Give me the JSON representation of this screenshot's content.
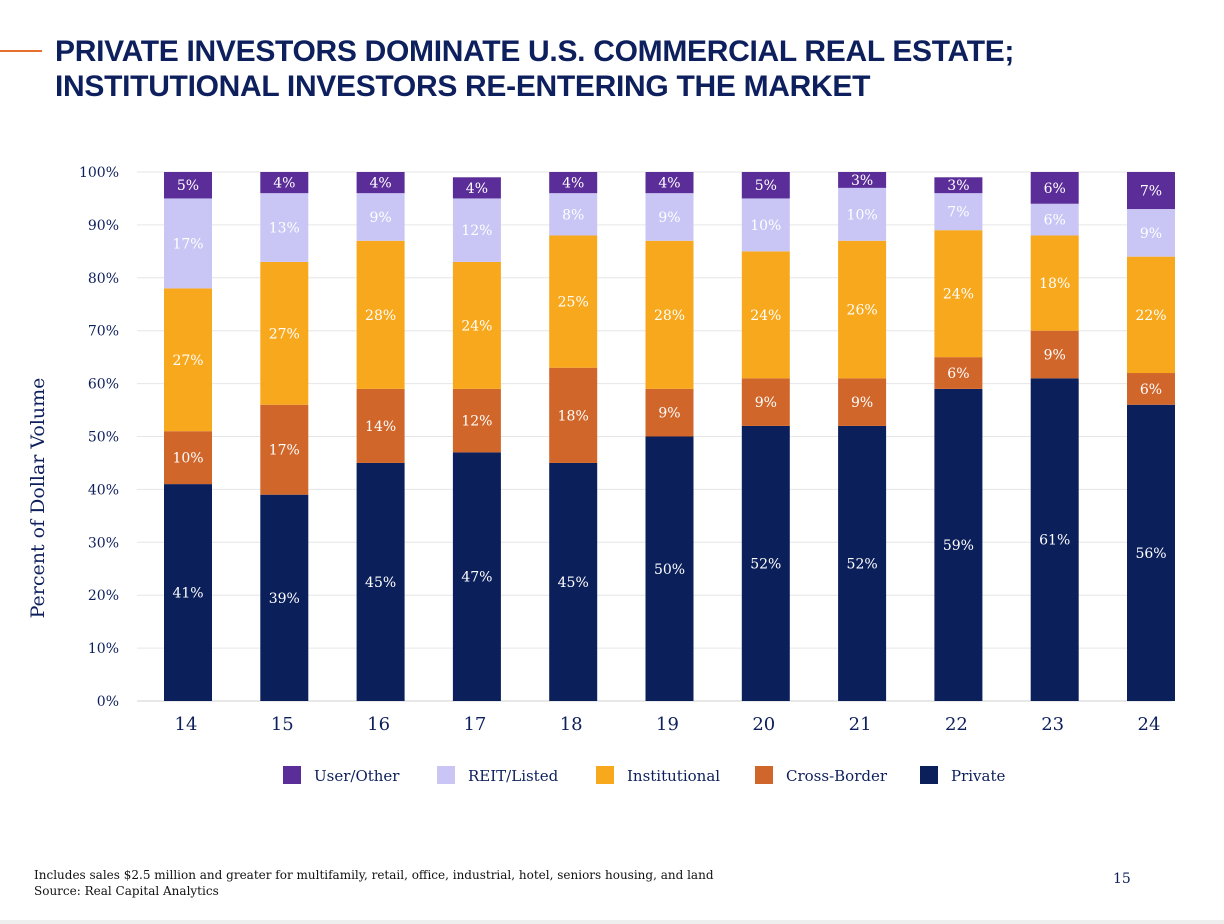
{
  "header": {
    "title_line1": "PRIVATE INVESTORS DOMINATE U.S. COMMERCIAL REAL ESTATE;",
    "title_line2": "INSTITUTIONAL INVESTORS RE-ENTERING THE MARKET"
  },
  "chart_data": {
    "type": "bar",
    "stacked": true,
    "title": "PRIVATE INVESTORS DOMINATE U.S. COMMERCIAL REAL ESTATE; INSTITUTIONAL INVESTORS RE-ENTERING THE MARKET",
    "xlabel": "",
    "ylabel": "Percent of Dollar Volume",
    "ylim": [
      0,
      100
    ],
    "y_ticks": [
      "0%",
      "10%",
      "20%",
      "30%",
      "40%",
      "50%",
      "60%",
      "70%",
      "80%",
      "90%",
      "100%"
    ],
    "grid": true,
    "legend_position": "bottom",
    "categories": [
      "14",
      "15",
      "16",
      "17",
      "18",
      "19",
      "20",
      "21",
      "22",
      "23",
      "24"
    ],
    "series": [
      {
        "name": "Private",
        "color": "#0b1f5b",
        "label_color": "#ffffff",
        "values": [
          41,
          39,
          45,
          47,
          45,
          50,
          52,
          52,
          59,
          61,
          56
        ],
        "labels": [
          "41%",
          "39%",
          "45%",
          "47%",
          "45%",
          "50%",
          "52%",
          "52%",
          "59%",
          "61%",
          "56%"
        ]
      },
      {
        "name": "Cross-Border",
        "color": "#d1662b",
        "label_color": "#ffffff",
        "values": [
          10,
          17,
          14,
          12,
          18,
          9,
          9,
          9,
          6,
          9,
          6
        ],
        "labels": [
          "10%",
          "17%",
          "14%",
          "12%",
          "18%",
          "9%",
          "9%",
          "9%",
          "6%",
          "9%",
          "6%"
        ]
      },
      {
        "name": "Institutional",
        "color": "#f8a81c",
        "label_color": "#ffffff",
        "values": [
          27,
          27,
          28,
          24,
          25,
          28,
          24,
          26,
          24,
          18,
          22
        ],
        "labels": [
          "27%",
          "27%",
          "28%",
          "24%",
          "25%",
          "28%",
          "24%",
          "26%",
          "24%",
          "18%",
          "22%"
        ]
      },
      {
        "name": "REIT/Listed",
        "color": "#c9c6f5",
        "label_color": "#ffffff",
        "values": [
          17,
          13,
          9,
          12,
          8,
          9,
          10,
          10,
          7,
          6,
          9
        ],
        "labels": [
          "17%",
          "13%",
          "9%",
          "12%",
          "8%",
          "9%",
          "10%",
          "10%",
          "7%",
          "6%",
          "9%"
        ]
      },
      {
        "name": "User/Other",
        "color": "#5b2d99",
        "label_color": "#ffffff",
        "values": [
          5,
          4,
          4,
          4,
          4,
          4,
          5,
          3,
          3,
          6,
          7
        ],
        "labels": [
          "5%",
          "4%",
          "4%",
          "4%",
          "4%",
          "4%",
          "5%",
          "3%",
          "3%",
          "6%",
          "7%"
        ]
      }
    ],
    "legend_order": [
      "User/Other",
      "REIT/Listed",
      "Institutional",
      "Cross-Border",
      "Private"
    ]
  },
  "footer": {
    "note": "Includes sales $2.5 million and greater for multifamily, retail, office, industrial, hotel, seniors housing, and land",
    "source": "Source: Real Capital Analytics",
    "page_number": "15"
  },
  "colors": {
    "title": "#0d1f5c",
    "accent": "#e86f2d",
    "grid": "#e6e6e6",
    "axis_text": "#0d1f5c"
  }
}
